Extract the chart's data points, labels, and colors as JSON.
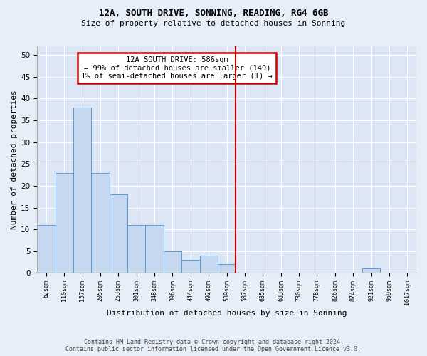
{
  "title1": "12A, SOUTH DRIVE, SONNING, READING, RG4 6GB",
  "title2": "Size of property relative to detached houses in Sonning",
  "xlabel": "Distribution of detached houses by size in Sonning",
  "ylabel": "Number of detached properties",
  "bin_labels": [
    "62sqm",
    "110sqm",
    "157sqm",
    "205sqm",
    "253sqm",
    "301sqm",
    "348sqm",
    "396sqm",
    "444sqm",
    "492sqm",
    "539sqm",
    "587sqm",
    "635sqm",
    "683sqm",
    "730sqm",
    "778sqm",
    "826sqm",
    "874sqm",
    "921sqm",
    "969sqm",
    "1017sqm"
  ],
  "bar_heights": [
    11,
    23,
    38,
    23,
    18,
    11,
    11,
    5,
    3,
    4,
    2,
    0,
    0,
    0,
    0,
    0,
    0,
    0,
    1,
    0,
    0
  ],
  "bar_color": "#c5d8ef",
  "bar_edge_color": "#5b9bd5",
  "annotation_line1": "12A SOUTH DRIVE: 586sqm",
  "annotation_line2": "← 99% of detached houses are smaller (149)",
  "annotation_line3": "1% of semi-detached houses are larger (1) →",
  "subject_line_color": "#cc0000",
  "ylim": [
    0,
    52
  ],
  "yticks": [
    0,
    5,
    10,
    15,
    20,
    25,
    30,
    35,
    40,
    45,
    50
  ],
  "background_color": "#e8eef7",
  "bar_background_color": "#dce6f4",
  "footnote1": "Contains HM Land Registry data © Crown copyright and database right 2024.",
  "footnote2": "Contains public sector information licensed under the Open Government Licence v3.0.",
  "grid_color": "#ffffff",
  "vline_color": "#cc0000",
  "annot_box_edge_color": "#cc0000",
  "annot_box_face_color": "#ffffff"
}
